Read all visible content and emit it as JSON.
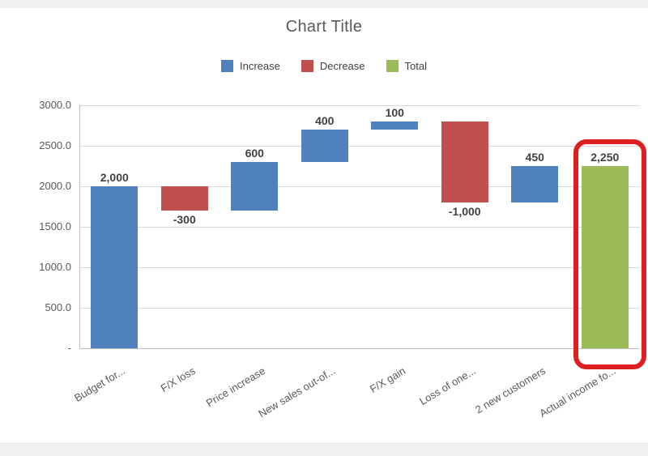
{
  "title": "Chart Title",
  "legend": {
    "items": [
      {
        "label": "Increase",
        "kind": "increase"
      },
      {
        "label": "Decrease",
        "kind": "decrease"
      },
      {
        "label": "Total",
        "kind": "total"
      }
    ]
  },
  "chart_data": {
    "type": "bar",
    "subtype": "waterfall",
    "title": "Chart Title",
    "ylabel": "",
    "xlabel": "",
    "ylim": [
      0,
      3000
    ],
    "ytick_labels": [
      "3000.0",
      "2500.0",
      "2000.0",
      "1500.0",
      "1000.0",
      "500.0",
      "-"
    ],
    "grid": true,
    "legend_position": "top",
    "colors": {
      "increase": "#4F81BD",
      "decrease": "#C0504D",
      "total": "#9BBB59"
    },
    "bars": [
      {
        "category": "Budget for...",
        "value": 2000,
        "start": 0,
        "end": 2000,
        "kind": "increase",
        "data_label": "2,000"
      },
      {
        "category": "F/X loss",
        "value": -300,
        "start": 2000,
        "end": 1700,
        "kind": "decrease",
        "data_label": "-300"
      },
      {
        "category": "Price increase",
        "value": 600,
        "start": 1700,
        "end": 2300,
        "kind": "increase",
        "data_label": "600"
      },
      {
        "category": "New sales out-of...",
        "value": 400,
        "start": 2300,
        "end": 2700,
        "kind": "increase",
        "data_label": "400"
      },
      {
        "category": "F/X gain",
        "value": 100,
        "start": 2700,
        "end": 2800,
        "kind": "increase",
        "data_label": "100"
      },
      {
        "category": "Loss of one...",
        "value": -1000,
        "start": 2800,
        "end": 1800,
        "kind": "decrease",
        "data_label": "-1,000"
      },
      {
        "category": "2 new customers",
        "value": 450,
        "start": 1800,
        "end": 2250,
        "kind": "increase",
        "data_label": "450"
      },
      {
        "category": "Actual income fo...",
        "value": 2250,
        "start": 0,
        "end": 2250,
        "kind": "total",
        "data_label": "2,250"
      }
    ]
  },
  "highlight": {
    "bar_category": "Actual income fo...",
    "color": "#DD1F21"
  }
}
